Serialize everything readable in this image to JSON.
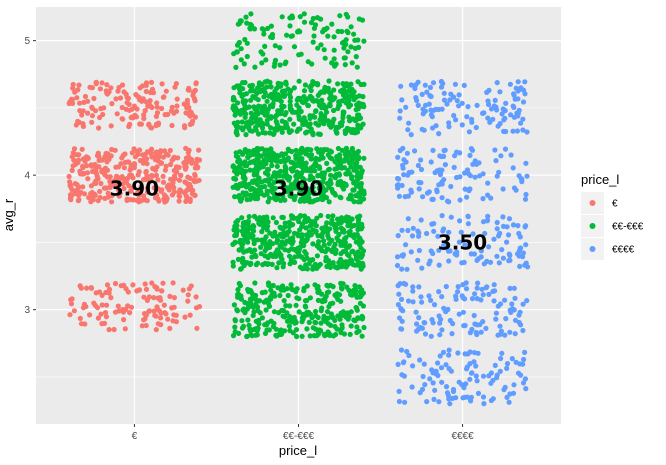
{
  "chart_data": {
    "type": "scatter",
    "subtype": "jitter",
    "xlabel": "price_l",
    "ylabel": "avg_r",
    "categories": [
      "€",
      "€€-€€€",
      "€€€€"
    ],
    "ylim": [
      2.15,
      5.25
    ],
    "yticks": [
      3,
      4,
      5
    ],
    "grid": true,
    "legend": {
      "title": "price_l",
      "placement": "right",
      "entries": [
        "€",
        "€€-€€€",
        "€€€€"
      ]
    },
    "colors": {
      "€": "#F8766D",
      "€€-€€€": "#00BA38",
      "€€€€": "#619CFF"
    },
    "series": [
      {
        "name": "€",
        "label": "3.90",
        "label_y": 3.9,
        "bands": [
          {
            "ymin": 2.85,
            "ymax": 3.2,
            "n": 120
          },
          {
            "ymin": 3.8,
            "ymax": 4.2,
            "n": 330
          },
          {
            "ymin": 4.35,
            "ymax": 4.7,
            "n": 160
          }
        ]
      },
      {
        "name": "€€-€€€",
        "label": "3.90",
        "label_y": 3.9,
        "bands": [
          {
            "ymin": 2.8,
            "ymax": 3.2,
            "n": 300
          },
          {
            "ymin": 3.3,
            "ymax": 3.7,
            "n": 420
          },
          {
            "ymin": 3.8,
            "ymax": 4.2,
            "n": 520
          },
          {
            "ymin": 4.3,
            "ymax": 4.7,
            "n": 420
          },
          {
            "ymin": 4.8,
            "ymax": 5.2,
            "n": 120
          }
        ]
      },
      {
        "name": "€€€€",
        "label": "3.50",
        "label_y": 3.5,
        "bands": [
          {
            "ymin": 2.3,
            "ymax": 2.7,
            "n": 110
          },
          {
            "ymin": 2.8,
            "ymax": 3.2,
            "n": 120
          },
          {
            "ymin": 3.3,
            "ymax": 3.7,
            "n": 110
          },
          {
            "ymin": 3.8,
            "ymax": 4.2,
            "n": 110
          },
          {
            "ymin": 4.3,
            "ymax": 4.7,
            "n": 120
          }
        ]
      }
    ]
  }
}
